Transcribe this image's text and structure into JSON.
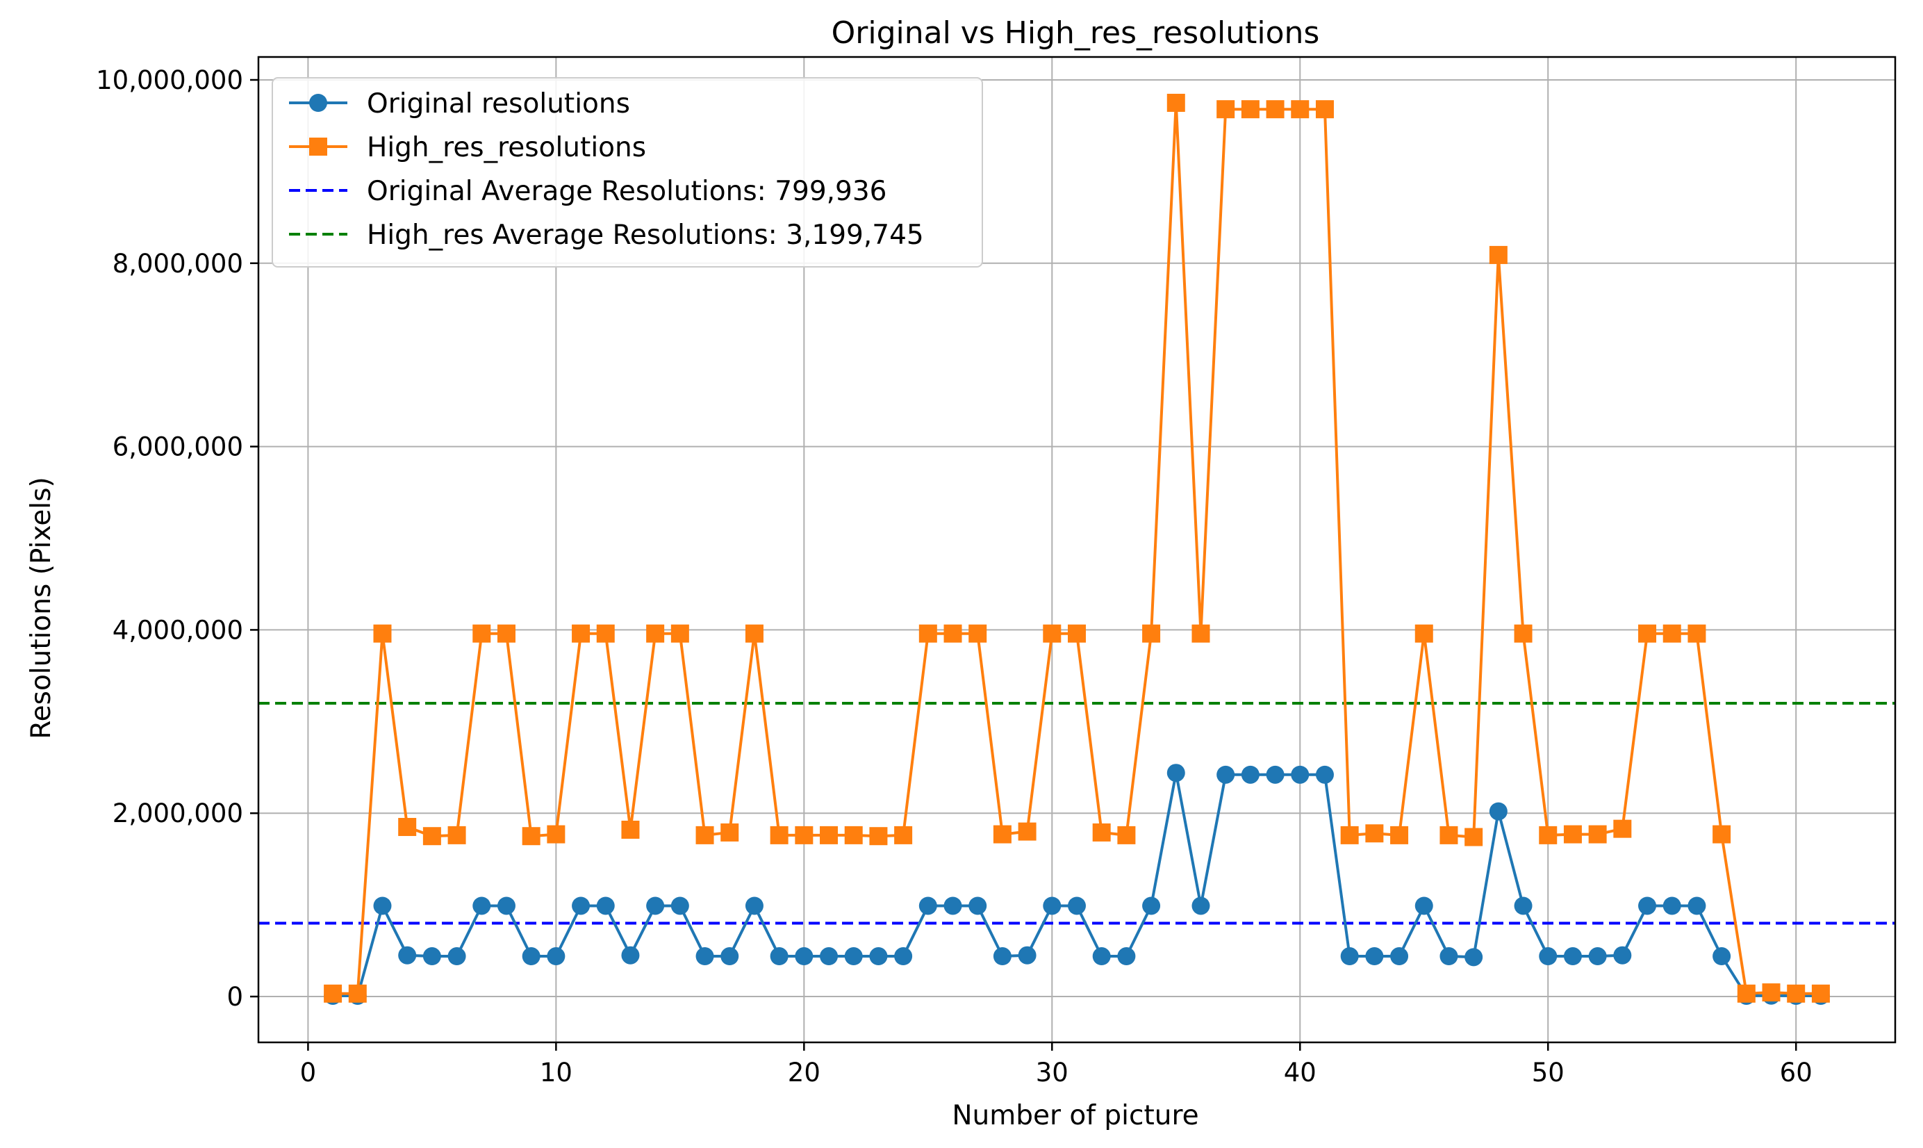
{
  "chart_data": {
    "type": "line",
    "title": "Original vs High_res_resolutions",
    "xlabel": "Number of picture",
    "ylabel": "Resolutions (Pixels)",
    "xlim": [
      -2,
      64
    ],
    "ylim": [
      -500000,
      10250000
    ],
    "x_ticks": [
      0,
      10,
      20,
      30,
      40,
      50,
      60
    ],
    "x_tick_labels": [
      "0",
      "10",
      "20",
      "30",
      "40",
      "50",
      "60"
    ],
    "y_ticks": [
      0,
      2000000,
      4000000,
      6000000,
      8000000,
      10000000
    ],
    "y_tick_labels": [
      "0",
      "2,000,000",
      "4,000,000",
      "6,000,000",
      "8,000,000",
      "10,000,000"
    ],
    "grid": true,
    "legend_position": "top-left",
    "x": [
      1,
      2,
      3,
      4,
      5,
      6,
      7,
      8,
      9,
      10,
      11,
      12,
      13,
      14,
      15,
      16,
      17,
      18,
      19,
      20,
      21,
      22,
      23,
      24,
      25,
      26,
      27,
      28,
      29,
      30,
      31,
      32,
      33,
      34,
      35,
      36,
      37,
      38,
      39,
      40,
      41,
      42,
      43,
      44,
      45,
      46,
      47,
      48,
      49,
      50,
      51,
      52,
      53,
      54,
      55,
      56,
      57,
      58,
      59,
      60,
      61
    ],
    "series": [
      {
        "name": "Original resolutions",
        "color": "#1f77b4",
        "marker": "circle",
        "values": [
          8000,
          8000,
          990000,
          450000,
          440000,
          440000,
          990000,
          990000,
          440000,
          440000,
          990000,
          990000,
          450000,
          990000,
          990000,
          440000,
          440000,
          990000,
          440000,
          440000,
          440000,
          440000,
          440000,
          440000,
          990000,
          990000,
          990000,
          440000,
          450000,
          990000,
          990000,
          440000,
          440000,
          990000,
          2440000,
          990000,
          2420000,
          2420000,
          2420000,
          2420000,
          2420000,
          440000,
          440000,
          440000,
          990000,
          440000,
          430000,
          2020000,
          990000,
          440000,
          440000,
          440000,
          450000,
          990000,
          990000,
          990000,
          440000,
          8000,
          10000,
          8000,
          8000
        ]
      },
      {
        "name": "High_res_resolutions",
        "color": "#ff7f0e",
        "marker": "square",
        "values": [
          32000,
          32000,
          3960000,
          1850000,
          1750000,
          1760000,
          3960000,
          3960000,
          1750000,
          1770000,
          3960000,
          3960000,
          1820000,
          3960000,
          3960000,
          1760000,
          1790000,
          3960000,
          1760000,
          1760000,
          1760000,
          1760000,
          1750000,
          1760000,
          3960000,
          3960000,
          3960000,
          1770000,
          1800000,
          3960000,
          3960000,
          1790000,
          1760000,
          3960000,
          9750000,
          3960000,
          9680000,
          9680000,
          9680000,
          9680000,
          9680000,
          1760000,
          1780000,
          1760000,
          3960000,
          1760000,
          1740000,
          8090000,
          3960000,
          1760000,
          1770000,
          1770000,
          1830000,
          3960000,
          3960000,
          3960000,
          1770000,
          32000,
          45000,
          32000,
          32000
        ]
      }
    ],
    "reference_lines": [
      {
        "name": "Original Average Resolutions: 799,936",
        "value": 799936,
        "color": "#0000ff",
        "style": "dashed"
      },
      {
        "name": "High_res Average Resolutions: 3,199,745",
        "value": 3199745,
        "color": "#008000",
        "style": "dashed"
      }
    ]
  }
}
